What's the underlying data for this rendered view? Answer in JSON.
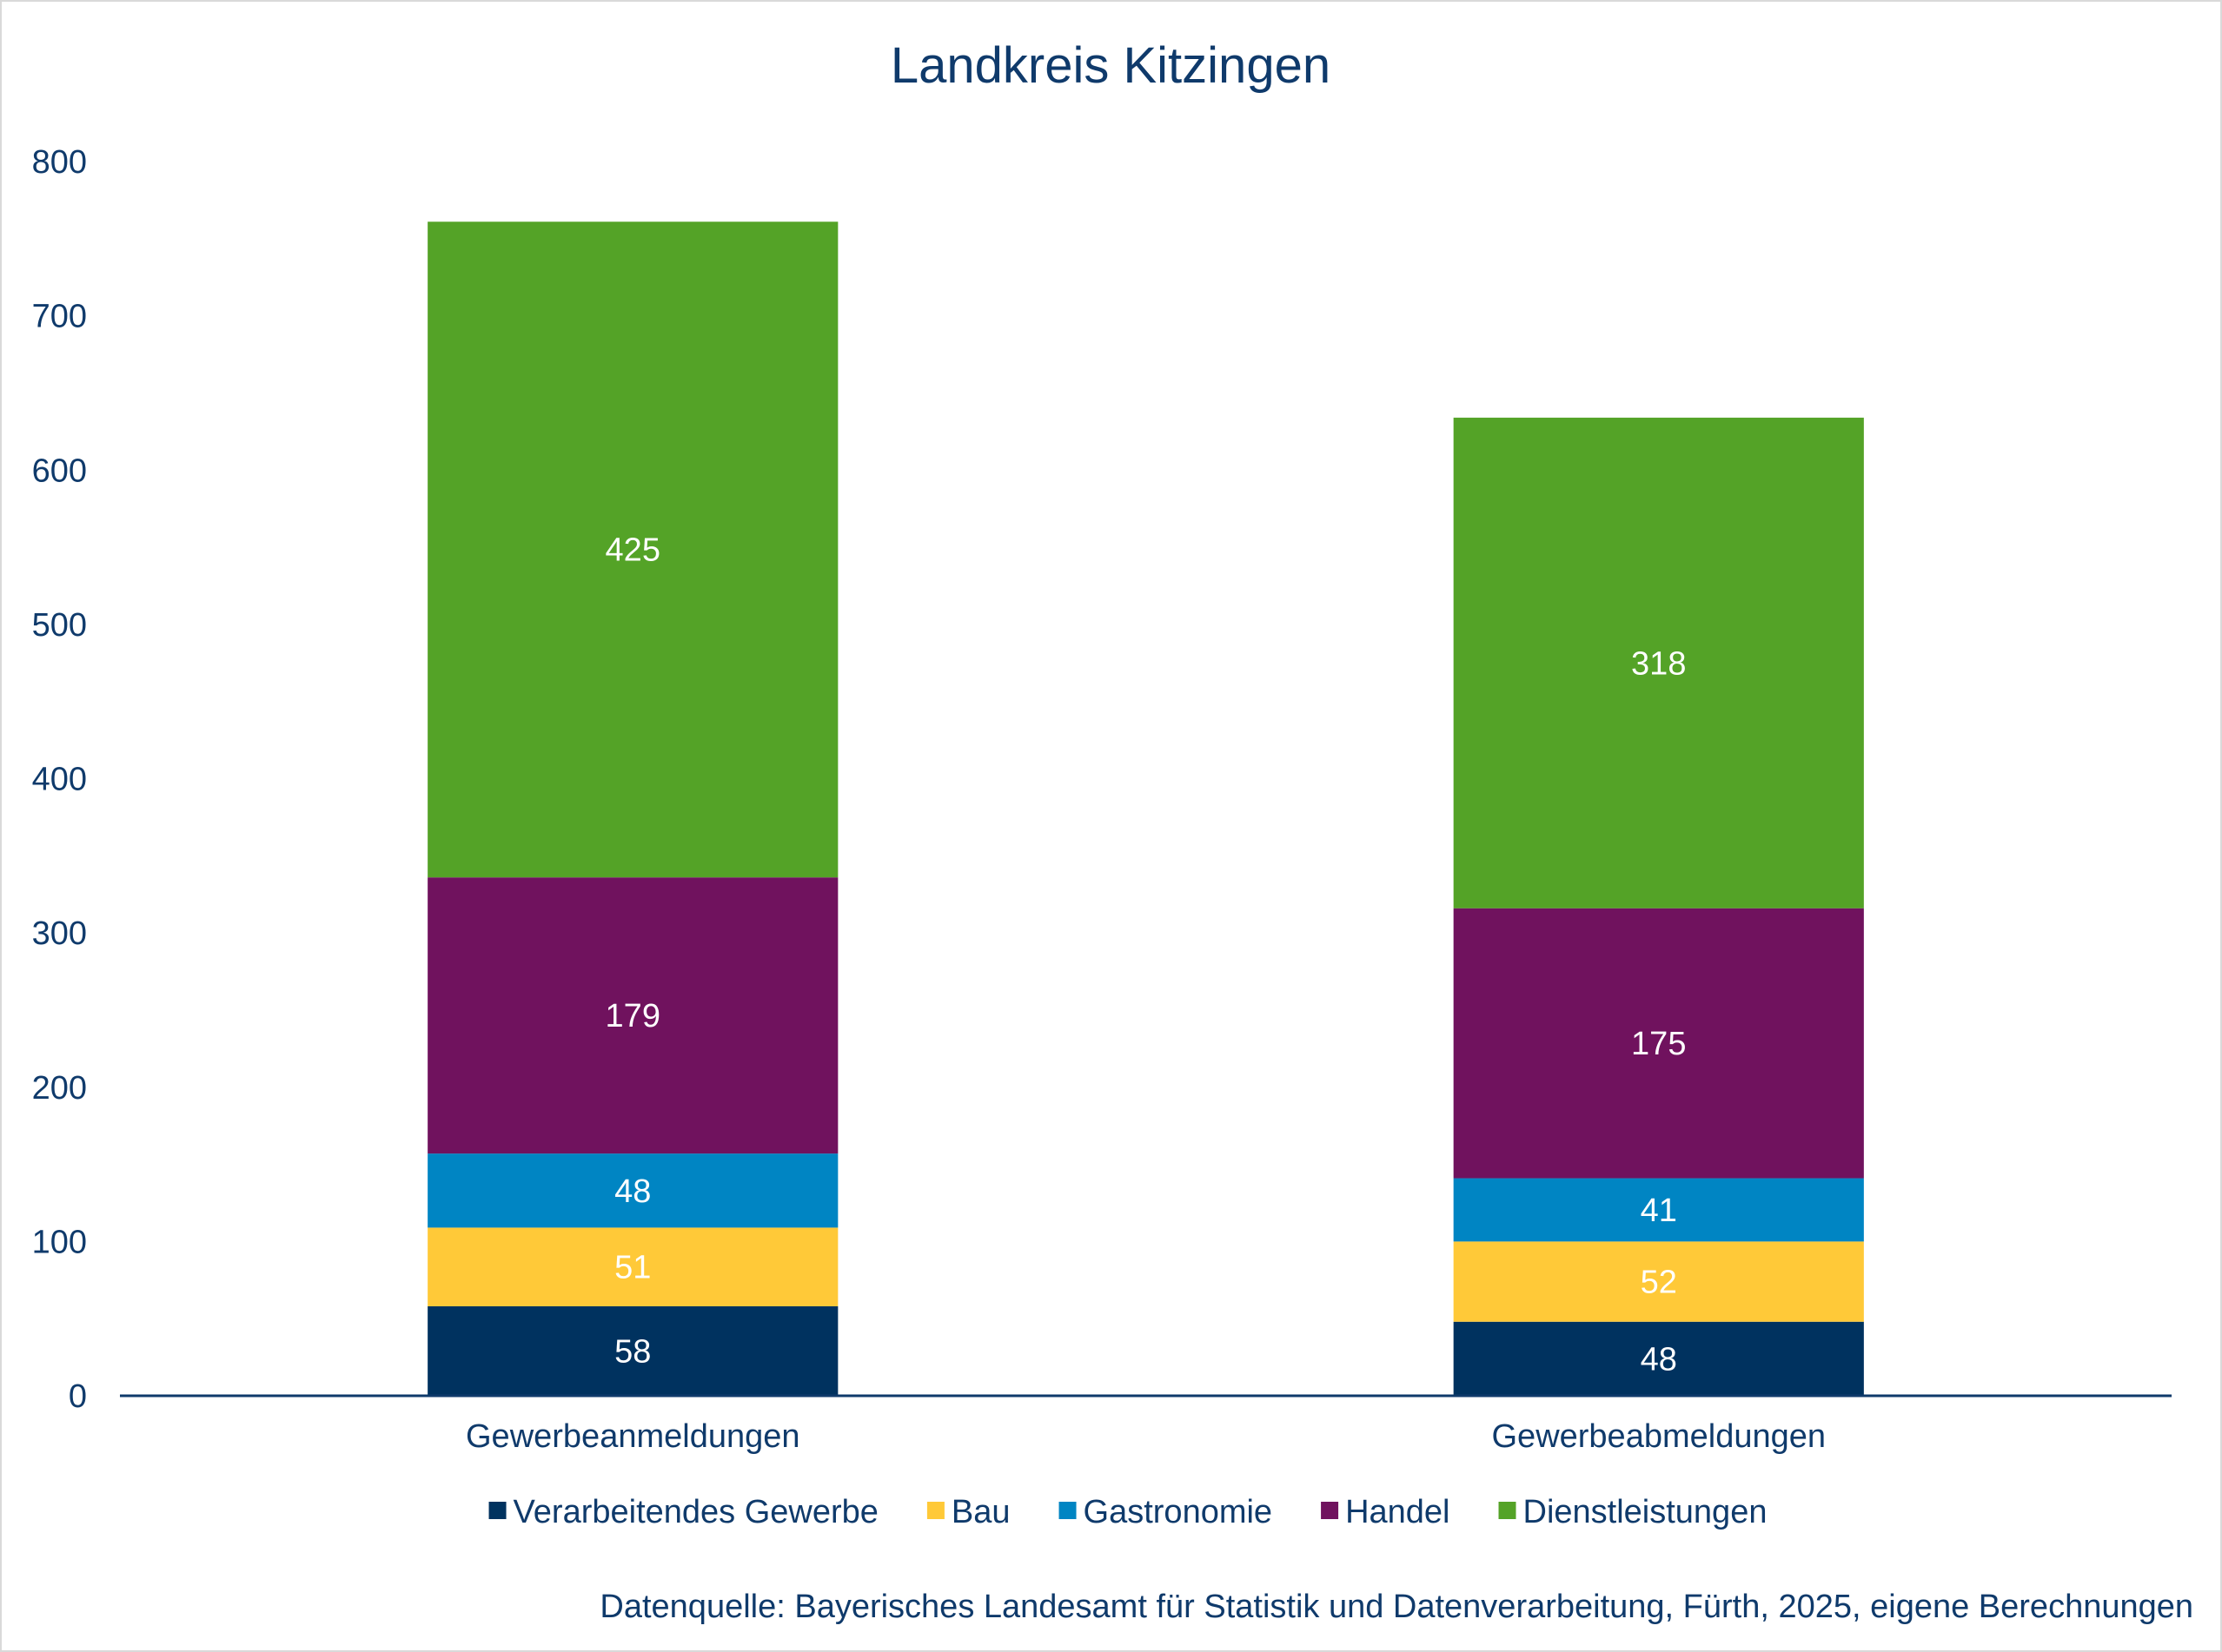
{
  "chart_data": {
    "type": "bar",
    "stacked": true,
    "title": "Landkreis Kitzingen",
    "categories": [
      "Gewerbeanmeldungen",
      "Gewerbeabmeldungen"
    ],
    "series": [
      {
        "name": "Verarbeitendes Gewerbe",
        "values": [
          58,
          48
        ],
        "color": "#00325f"
      },
      {
        "name": "Bau",
        "values": [
          51,
          52
        ],
        "color": "#ffc938"
      },
      {
        "name": "Gastronomie",
        "values": [
          48,
          41
        ],
        "color": "#0085c3"
      },
      {
        "name": "Handel",
        "values": [
          179,
          175
        ],
        "color": "#70125e"
      },
      {
        "name": "Dienstleistungen",
        "values": [
          425,
          318
        ],
        "color": "#54a327"
      }
    ],
    "ylim": [
      0,
      800
    ],
    "yticks": [
      0,
      100,
      200,
      300,
      400,
      500,
      600,
      700,
      800
    ],
    "grid": false,
    "legend": "bottom",
    "xlabel": "",
    "ylabel": ""
  },
  "source_note": "Datenquelle: Bayerisches Landesamt für Statistik und Datenverarbeitung, Fürth, 2025, eigene Berechnungen",
  "colors": {
    "text": "#0f3a6b",
    "axis": "#0f3a6b",
    "label": "#ffffff"
  }
}
